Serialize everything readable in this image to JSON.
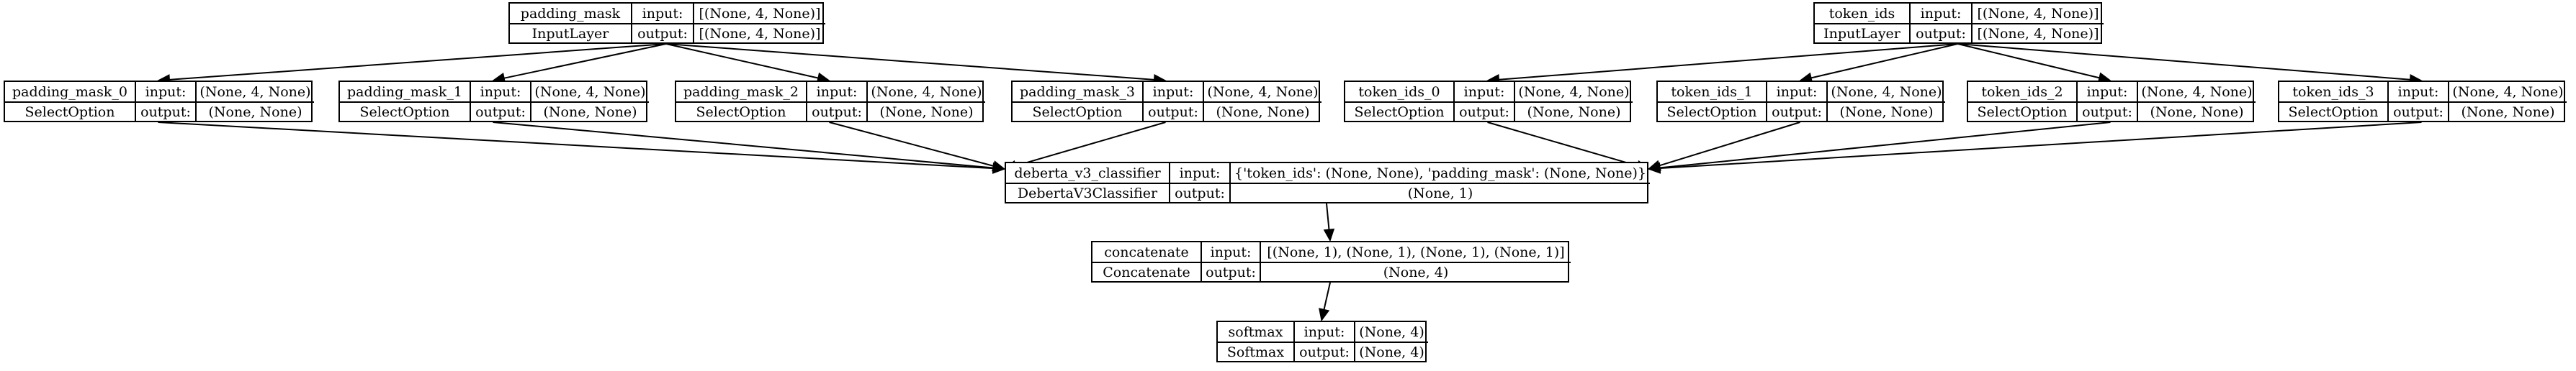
{
  "nodes": {
    "padding_mask": {
      "name": "padding_mask",
      "type": "InputLayer",
      "input_label": "input:",
      "output_label": "output:",
      "input": "[(None, 4, None)]",
      "output": "[(None, 4, None)]"
    },
    "token_ids": {
      "name": "token_ids",
      "type": "InputLayer",
      "input_label": "input:",
      "output_label": "output:",
      "input": "[(None, 4, None)]",
      "output": "[(None, 4, None)]"
    },
    "padding_mask_0": {
      "name": "padding_mask_0",
      "type": "SelectOption",
      "input_label": "input:",
      "output_label": "output:",
      "input": "(None, 4, None)",
      "output": "(None, None)"
    },
    "padding_mask_1": {
      "name": "padding_mask_1",
      "type": "SelectOption",
      "input_label": "input:",
      "output_label": "output:",
      "input": "(None, 4, None)",
      "output": "(None, None)"
    },
    "padding_mask_2": {
      "name": "padding_mask_2",
      "type": "SelectOption",
      "input_label": "input:",
      "output_label": "output:",
      "input": "(None, 4, None)",
      "output": "(None, None)"
    },
    "padding_mask_3": {
      "name": "padding_mask_3",
      "type": "SelectOption",
      "input_label": "input:",
      "output_label": "output:",
      "input": "(None, 4, None)",
      "output": "(None, None)"
    },
    "token_ids_0": {
      "name": "token_ids_0",
      "type": "SelectOption",
      "input_label": "input:",
      "output_label": "output:",
      "input": "(None, 4, None)",
      "output": "(None, None)"
    },
    "token_ids_1": {
      "name": "token_ids_1",
      "type": "SelectOption",
      "input_label": "input:",
      "output_label": "output:",
      "input": "(None, 4, None)",
      "output": "(None, None)"
    },
    "token_ids_2": {
      "name": "token_ids_2",
      "type": "SelectOption",
      "input_label": "input:",
      "output_label": "output:",
      "input": "(None, 4, None)",
      "output": "(None, None)"
    },
    "token_ids_3": {
      "name": "token_ids_3",
      "type": "SelectOption",
      "input_label": "input:",
      "output_label": "output:",
      "input": "(None, 4, None)",
      "output": "(None, None)"
    },
    "deberta_v3_classifier": {
      "name": "deberta_v3_classifier",
      "type": "DebertaV3Classifier",
      "input_label": "input:",
      "output_label": "output:",
      "input": "{'token_ids': (None, None), 'padding_mask': (None, None)}",
      "output": "(None, 1)"
    },
    "concatenate": {
      "name": "concatenate",
      "type": "Concatenate",
      "input_label": "input:",
      "output_label": "output:",
      "input": "[(None, 1), (None, 1), (None, 1), (None, 1)]",
      "output": "(None, 4)"
    },
    "softmax": {
      "name": "softmax",
      "type": "Softmax",
      "input_label": "input:",
      "output_label": "output:",
      "input": "(None, 4)",
      "output": "(None, 4)"
    }
  },
  "edges": [
    [
      "padding_mask",
      "padding_mask_0"
    ],
    [
      "padding_mask",
      "padding_mask_1"
    ],
    [
      "padding_mask",
      "padding_mask_2"
    ],
    [
      "padding_mask",
      "padding_mask_3"
    ],
    [
      "token_ids",
      "token_ids_0"
    ],
    [
      "token_ids",
      "token_ids_1"
    ],
    [
      "token_ids",
      "token_ids_2"
    ],
    [
      "token_ids",
      "token_ids_3"
    ],
    [
      "padding_mask_0",
      "deberta_v3_classifier"
    ],
    [
      "padding_mask_1",
      "deberta_v3_classifier"
    ],
    [
      "padding_mask_2",
      "deberta_v3_classifier"
    ],
    [
      "padding_mask_3",
      "deberta_v3_classifier"
    ],
    [
      "token_ids_0",
      "deberta_v3_classifier"
    ],
    [
      "token_ids_1",
      "deberta_v3_classifier"
    ],
    [
      "token_ids_2",
      "deberta_v3_classifier"
    ],
    [
      "token_ids_3",
      "deberta_v3_classifier"
    ],
    [
      "deberta_v3_classifier",
      "concatenate"
    ],
    [
      "concatenate",
      "softmax"
    ]
  ]
}
